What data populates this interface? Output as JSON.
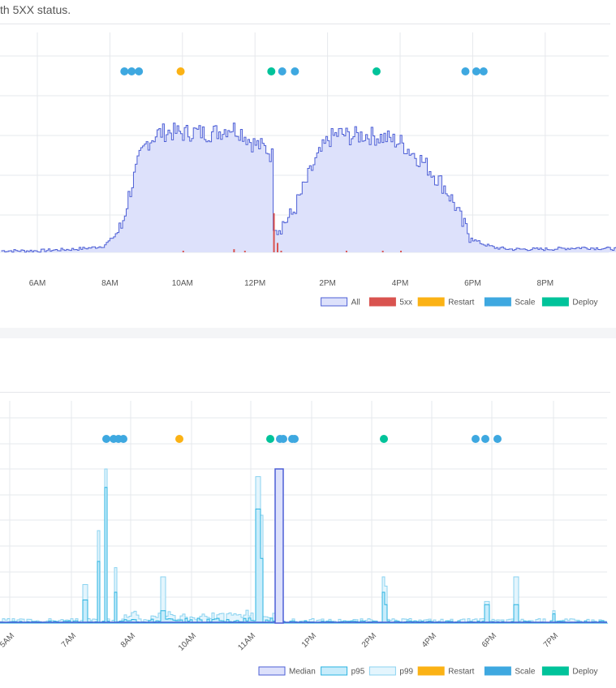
{
  "description": "th 5XX status.",
  "colors": {
    "all_fill": "#dde1fb",
    "all_stroke": "#4d5fd6",
    "fivexx": "#d9534f",
    "restart": "#fbb215",
    "scale": "#3ea8e0",
    "deploy": "#00c39a",
    "p95_fill": "#c8ecfb",
    "p95_stroke": "#2ab3e0",
    "p99_fill": "#e4f5fd",
    "p99_stroke": "#8bd3f0",
    "grid": "#e6e8ec"
  },
  "chart_data": [
    {
      "type": "area",
      "x_ticks": [
        "6AM",
        "8AM",
        "10AM",
        "12PM",
        "2PM",
        "4PM",
        "6PM",
        "8PM"
      ],
      "x_range_hours": [
        5.0,
        22.5
      ],
      "y_range": [
        0,
        100
      ],
      "grid": true,
      "legend_position": "bottom-right",
      "legend": [
        {
          "label": "All",
          "color_key": "all_fill"
        },
        {
          "label": "5xx",
          "color_key": "fivexx"
        },
        {
          "label": "Restart",
          "color_key": "restart"
        },
        {
          "label": "Scale",
          "color_key": "scale"
        },
        {
          "label": "Deploy",
          "color_key": "deploy"
        }
      ],
      "series": [
        {
          "name": "All",
          "points": [
            [
              5.0,
              1
            ],
            [
              6.0,
              1
            ],
            [
              7.0,
              2
            ],
            [
              7.5,
              3
            ],
            [
              7.8,
              4
            ],
            [
              8.0,
              8
            ],
            [
              8.3,
              16
            ],
            [
              8.5,
              36
            ],
            [
              8.8,
              60
            ],
            [
              9.0,
              70
            ],
            [
              9.3,
              76
            ],
            [
              9.6,
              77
            ],
            [
              10.0,
              76
            ],
            [
              10.3,
              77
            ],
            [
              10.6,
              76
            ],
            [
              11.0,
              77
            ],
            [
              11.3,
              80
            ],
            [
              11.6,
              77
            ],
            [
              11.9,
              70
            ],
            [
              12.3,
              66
            ],
            [
              12.5,
              60
            ],
            [
              12.55,
              14
            ],
            [
              13.0,
              24
            ],
            [
              13.3,
              40
            ],
            [
              13.6,
              56
            ],
            [
              14.0,
              72
            ],
            [
              14.3,
              76
            ],
            [
              14.6,
              74
            ],
            [
              15.0,
              75
            ],
            [
              15.3,
              74
            ],
            [
              15.6,
              73
            ],
            [
              16.0,
              70
            ],
            [
              16.3,
              64
            ],
            [
              16.6,
              58
            ],
            [
              16.9,
              50
            ],
            [
              17.2,
              42
            ],
            [
              17.5,
              30
            ],
            [
              17.7,
              18
            ],
            [
              18.0,
              8
            ],
            [
              18.3,
              5
            ],
            [
              18.6,
              3
            ],
            [
              19.0,
              2
            ],
            [
              20.0,
              2
            ],
            [
              21.0,
              3
            ],
            [
              22.2,
              2
            ]
          ]
        },
        {
          "name": "5xx",
          "points": [
            [
              10.0,
              1
            ],
            [
              11.4,
              2
            ],
            [
              11.7,
              1
            ],
            [
              12.5,
              25
            ],
            [
              12.6,
              6
            ],
            [
              12.7,
              1
            ],
            [
              14.5,
              1
            ],
            [
              15.5,
              1
            ],
            [
              16.0,
              1
            ]
          ]
        }
      ],
      "events": {
        "scale": [
          8.4,
          8.6,
          8.8,
          12.75,
          13.1,
          17.8,
          18.1,
          18.3
        ],
        "restart": [
          9.95
        ],
        "deploy": [
          12.45,
          15.35
        ]
      }
    },
    {
      "type": "line",
      "x_ticks": [
        "5AM",
        "7AM",
        "8AM",
        "10AM",
        "11AM",
        "1PM",
        "2PM",
        "4PM",
        "6PM",
        "7PM"
      ],
      "y_range": [
        0,
        100
      ],
      "grid": true,
      "legend_position": "bottom-right",
      "legend": [
        {
          "label": "Median",
          "color_key": "all_fill"
        },
        {
          "label": "p95",
          "color_key": "p95_fill"
        },
        {
          "label": "p99",
          "color_key": "p99_fill"
        },
        {
          "label": "Restart",
          "color_key": "restart"
        },
        {
          "label": "Scale",
          "color_key": "scale"
        },
        {
          "label": "Deploy",
          "color_key": "deploy"
        }
      ],
      "spikes": [
        {
          "x": 1.6,
          "p99": 20,
          "p95": 12
        },
        {
          "x": 1.85,
          "p99": 10,
          "p95": 8
        },
        {
          "x": 5.9,
          "p99": 25,
          "p95": 15
        },
        {
          "x": 6.25,
          "p99": 60,
          "p95": 40
        },
        {
          "x": 6.45,
          "p99": 100,
          "p95": 88
        },
        {
          "x": 6.7,
          "p99": 36,
          "p95": 20
        },
        {
          "x": 8.0,
          "p99": 30,
          "p95": 8
        },
        {
          "x": 10.5,
          "p99": 40,
          "p95": 30
        },
        {
          "x": 10.55,
          "p99": 95,
          "p95": 74
        },
        {
          "x": 10.65,
          "p99": 70,
          "p95": 42
        },
        {
          "x": 13.9,
          "p99": 30,
          "p95": 20
        },
        {
          "x": 14.0,
          "p99": 24,
          "p95": 12
        },
        {
          "x": 16.7,
          "p99": 14,
          "p95": 12
        },
        {
          "x": 17.5,
          "p99": 30,
          "p95": 12
        },
        {
          "x": 18.5,
          "p99": 8,
          "p95": 6
        }
      ],
      "median_block": {
        "x0": 7.05,
        "x1": 7.25,
        "value": 100
      },
      "x_range_hours": [
        3.9,
        19.9
      ],
      "events": {
        "scale": [
          3.15,
          3.35,
          3.45,
          3.6,
          6.95,
          7.05,
          7.25,
          11.95,
          12.1,
          12.3
        ],
        "restart": [
          4.7
        ],
        "deploy": [
          6.85,
          9.9
        ]
      }
    }
  ]
}
